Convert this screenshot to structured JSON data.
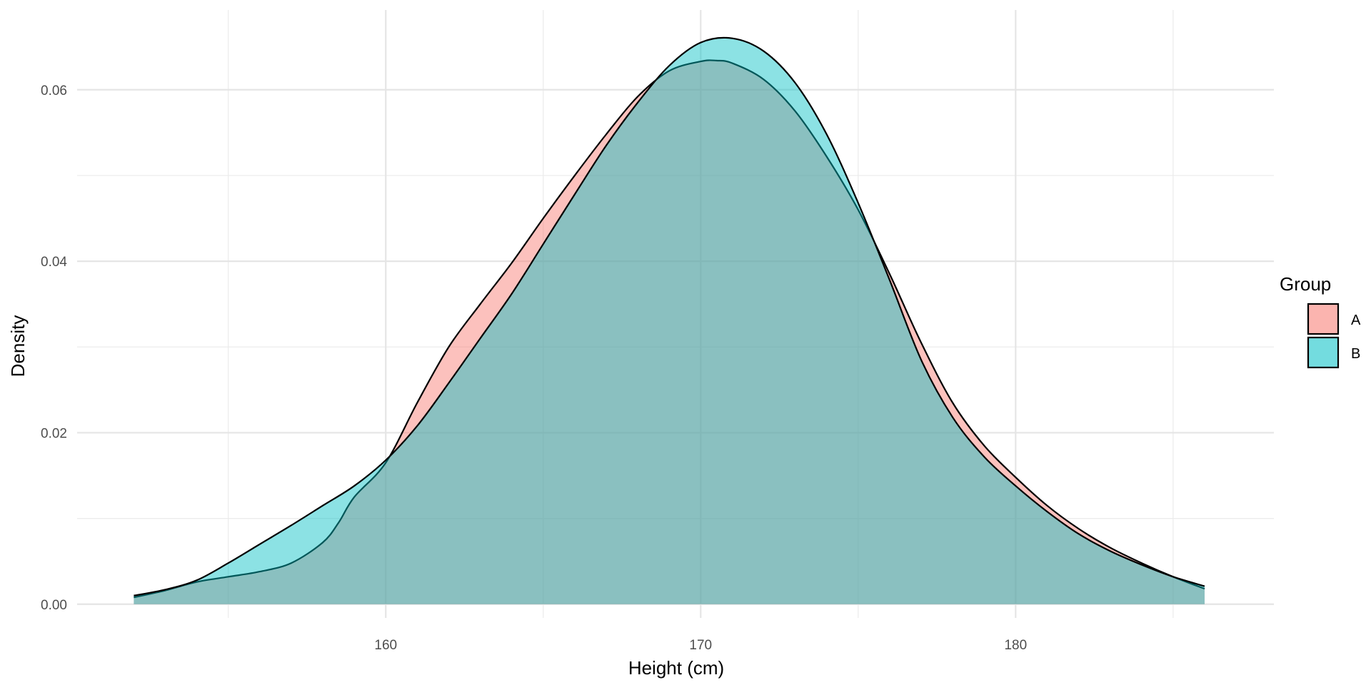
{
  "chart_data": {
    "type": "area",
    "xlabel": "Height (cm)",
    "ylabel": "Density",
    "xlim": [
      150.2,
      188.2
    ],
    "ylim": [
      -0.0016,
      0.0693
    ],
    "x_ticks": [
      160,
      170,
      180
    ],
    "x_minor_ticks": [
      155,
      165,
      175,
      185
    ],
    "y_ticks": [
      0.0,
      0.02,
      0.04,
      0.06
    ],
    "y_tick_labels": [
      "0.00",
      "0.02",
      "0.04",
      "0.06"
    ],
    "y_minor_ticks": [
      0.01,
      0.03,
      0.05
    ],
    "grid": true,
    "legend": {
      "title": "Group",
      "placement": "right"
    },
    "series": [
      {
        "name": "A",
        "color": "#F8766D",
        "x": [
          152.0,
          153.0,
          154.0,
          155.0,
          156.0,
          157.0,
          158.0,
          158.5,
          159.0,
          160.0,
          161.0,
          162.0,
          163.0,
          164.0,
          165.0,
          166.0,
          167.0,
          168.0,
          169.0,
          170.0,
          170.5,
          171.0,
          172.0,
          173.0,
          174.0,
          175.0,
          176.0,
          177.0,
          178.0,
          179.0,
          180.0,
          181.0,
          182.0,
          183.0,
          184.0,
          185.0,
          186.0
        ],
        "y": [
          0.0008,
          0.0016,
          0.0026,
          0.0032,
          0.0038,
          0.0048,
          0.0072,
          0.0095,
          0.0125,
          0.0165,
          0.0235,
          0.03,
          0.035,
          0.0398,
          0.045,
          0.05,
          0.0548,
          0.0592,
          0.0622,
          0.0633,
          0.0634,
          0.0631,
          0.0612,
          0.0575,
          0.0522,
          0.046,
          0.0385,
          0.0305,
          0.0235,
          0.0185,
          0.0148,
          0.0115,
          0.0088,
          0.0066,
          0.0048,
          0.0032,
          0.0018
        ]
      },
      {
        "name": "B",
        "color": "#00BFC4",
        "x": [
          152.0,
          153.0,
          154.0,
          155.0,
          156.0,
          157.0,
          158.0,
          159.0,
          160.0,
          161.0,
          162.0,
          163.0,
          164.0,
          165.0,
          166.0,
          167.0,
          168.0,
          169.0,
          170.0,
          171.0,
          172.0,
          173.0,
          174.0,
          175.0,
          176.0,
          177.0,
          178.0,
          179.0,
          180.0,
          181.0,
          182.0,
          183.0,
          184.0,
          185.0,
          186.0
        ],
        "y": [
          0.001,
          0.0017,
          0.0028,
          0.0048,
          0.007,
          0.0092,
          0.0115,
          0.0138,
          0.0168,
          0.0208,
          0.0258,
          0.031,
          0.0362,
          0.042,
          0.0478,
          0.0535,
          0.0585,
          0.0628,
          0.0655,
          0.066,
          0.0645,
          0.0608,
          0.0548,
          0.0468,
          0.0378,
          0.0285,
          0.0218,
          0.0172,
          0.0138,
          0.0108,
          0.0082,
          0.0062,
          0.0046,
          0.0032,
          0.0021
        ]
      }
    ]
  }
}
